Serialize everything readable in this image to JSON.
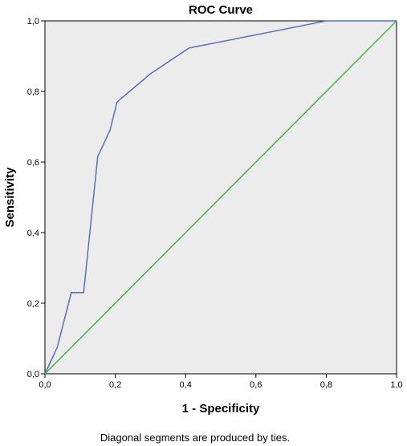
{
  "chart_data": {
    "type": "line",
    "title": "ROC Curve",
    "xlabel": "1 - Specificity",
    "ylabel": "Sensitivity",
    "xlim": [
      0,
      1
    ],
    "ylim": [
      0,
      1
    ],
    "x_ticks": [
      "0,0",
      "0,2",
      "0,4",
      "0,6",
      "0,8",
      "1,0"
    ],
    "y_ticks": [
      "0,0",
      "0,2",
      "0,4",
      "0,6",
      "0,8",
      "1,0"
    ],
    "grid": false,
    "series": [
      {
        "color": "#5b6fb5",
        "x": [
          0.0,
          0.035,
          0.075,
          0.11,
          0.15,
          0.185,
          0.205,
          0.3,
          0.41,
          0.8,
          1.0
        ],
        "y": [
          0.0,
          0.075,
          0.23,
          0.23,
          0.615,
          0.69,
          0.77,
          0.85,
          0.923,
          1.0,
          1.0
        ]
      },
      {
        "color": "#4caf50",
        "x": [
          0.0,
          1.0
        ],
        "y": [
          0.0,
          1.0
        ]
      }
    ],
    "footnote": "Diagonal segments are produced by ties.",
    "plot_background": "#ececec"
  }
}
